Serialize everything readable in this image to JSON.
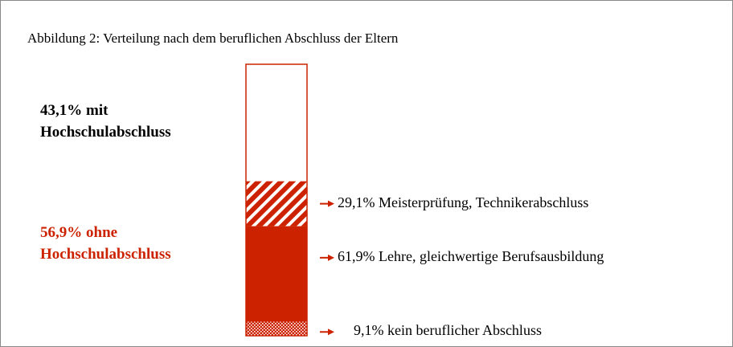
{
  "chart_data": {
    "type": "stacked-bar",
    "title": "Abbildung 2: Verteilung nach dem beruflichen Abschluss der Eltern",
    "series": [
      {
        "value": 43.1,
        "value_label": "43,1% mit Hochschulabschluss",
        "color": "#ffffff",
        "label_color": "#000000"
      },
      {
        "value": 56.9,
        "value_label": "56,9% ohne Hochschulabschluss",
        "color": "#cc2200",
        "label_color": "#cc2200",
        "parts": [
          {
            "value": 29.1,
            "value_label": "29,1% Meisterprüfung, Technikerabschluss",
            "pattern": "hatch"
          },
          {
            "value": 61.9,
            "value_label": "61,9% Lehre, gleichwertige Berufsausbildung",
            "pattern": "solid"
          },
          {
            "value": 9.1,
            "value_label": "9,1% kein beruflicher Abschluss",
            "pattern": "dots"
          }
        ]
      }
    ]
  }
}
